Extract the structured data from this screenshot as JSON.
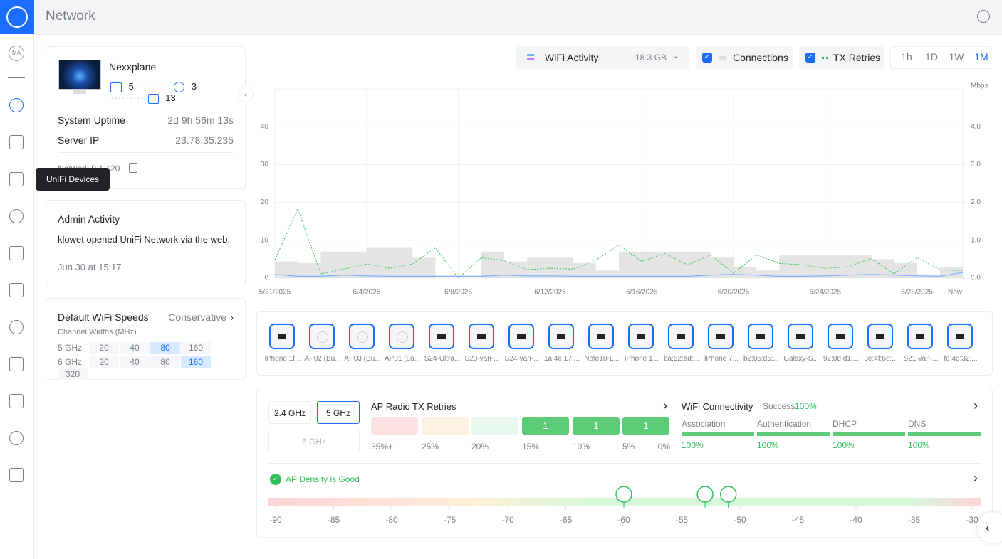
{
  "header": {
    "title": "Network",
    "avatar": "MA"
  },
  "tooltip": "UniFi Devices",
  "console": {
    "name": "Nexxplane",
    "gateways": 5,
    "aps": 3,
    "clients": 13,
    "rows": [
      {
        "label": "System Uptime",
        "value": "2d 9h 56m 13s"
      },
      {
        "label": "Server IP",
        "value": "23.78.35.235"
      }
    ],
    "version": "Network 9.1.120"
  },
  "admin_activity": {
    "title": "Admin Activity",
    "text": "klowet opened UniFi Network via the web.",
    "time": "Jun 30 at 15:17"
  },
  "wifi_speeds": {
    "title": "Default WiFi Speeds",
    "mode": "Conservative",
    "subtitle": "Channel Widths (MHz)",
    "rows": [
      {
        "band": "5 GHz",
        "widths": [
          20,
          40,
          80,
          160
        ],
        "selected": 80
      },
      {
        "band": "6 GHz",
        "widths": [
          20,
          40,
          80,
          160,
          320
        ],
        "selected": 160
      }
    ]
  },
  "toolbar": {
    "activity": "WiFi Activity",
    "total": "18.3 GB",
    "toggles": [
      "Connections",
      "TX Retries"
    ],
    "ranges": [
      "1h",
      "1D",
      "1W",
      "1M"
    ],
    "selected_range": "1M"
  },
  "chart_data": {
    "type": "line",
    "y2_label": "Mbps",
    "x": [
      "5/31/2025",
      "6/1/2025",
      "6/2/2025",
      "6/3/2025",
      "6/4/2025",
      "6/5/2025",
      "6/6/2025",
      "6/7/2025",
      "6/8/2025",
      "6/9/2025",
      "6/10/2025",
      "6/11/2025",
      "6/12/2025",
      "6/13/2025",
      "6/14/2025",
      "6/15/2025",
      "6/16/2025",
      "6/17/2025",
      "6/18/2025",
      "6/19/2025",
      "6/20/2025",
      "6/21/2025",
      "6/22/2025",
      "6/23/2025",
      "6/24/2025",
      "6/25/2025",
      "6/26/2025",
      "6/27/2025",
      "6/28/2025",
      "6/29/2025",
      "6/30/2025"
    ],
    "xlim": [
      "5/31/2025",
      "6/30/2025"
    ],
    "xticks": [
      "5/31/2025",
      "6/4/2025",
      "6/8/2025",
      "6/12/2025",
      "6/16/2025",
      "6/20/2025",
      "6/24/2025",
      "6/28/2025",
      {
        "value": "6/30/2025",
        "label": "Now"
      }
    ],
    "ylim": [
      0,
      50
    ],
    "yticks": [
      0,
      10,
      20,
      30,
      40
    ],
    "y2lim": [
      0,
      5
    ],
    "y2ticks": [
      {
        "value": 0,
        "label": "0.0"
      },
      {
        "value": 1,
        "label": "1.0"
      },
      {
        "value": 2,
        "label": "2.0"
      },
      {
        "value": 3,
        "label": "3.0"
      },
      {
        "value": 4,
        "label": "4.0"
      }
    ],
    "grid": true,
    "series": [
      {
        "name": "Connections",
        "kind": "bar",
        "color": "#e4e4e4",
        "values": [
          4.4,
          4,
          7,
          7,
          8,
          8,
          5.4,
          0,
          0,
          7,
          4.4,
          5.4,
          5.4,
          4,
          2,
          7,
          7,
          7,
          7,
          5.4,
          3,
          2,
          6,
          6,
          6,
          6,
          5,
          4,
          1,
          3,
          3
        ]
      },
      {
        "name": "TX Retries",
        "kind": "dotted",
        "color": "#2fbf5a",
        "values": [
          4.8,
          18.3,
          1.1,
          2.4,
          3.7,
          2.6,
          3.7,
          8,
          0,
          5.4,
          4.6,
          2.2,
          2.6,
          2.4,
          4.8,
          8.7,
          4.4,
          6.5,
          3.5,
          6.1,
          1.3,
          6.1,
          3.9,
          3.5,
          2.6,
          3,
          5.2,
          1.1,
          5.4,
          2.2,
          2
        ]
      },
      {
        "name": "WiFi Activity",
        "kind": "line",
        "axis": "y2",
        "color": "#7fb0ff",
        "values": [
          0.1,
          0.05,
          0.05,
          0.08,
          0.06,
          0.05,
          0.05,
          0.05,
          0.05,
          0.05,
          0.08,
          0.06,
          0.06,
          0.05,
          0.05,
          0.05,
          0.05,
          0.05,
          0.05,
          0.08,
          0.1,
          0.08,
          0.05,
          0.05,
          0.06,
          0.08,
          0.1,
          0.08,
          0.06,
          0.05,
          0.15
        ]
      }
    ]
  },
  "devices": [
    "iPhone 1f...",
    "AP02 (Bu...",
    "AP03 (Bu...",
    "AP01 (Lo...",
    "S24-Ultra...",
    "S23-van-...",
    "S24-van-...",
    "1a:4e:17:...",
    "Note10-L...",
    "iPhone 1...",
    "ba:52:ad:...",
    "iPhone 7...",
    "b2:85:d5:...",
    "Galaxy-S...",
    "92:0d:d1:...",
    "3e:4f:6e:...",
    "S21-van-...",
    "fe:4d:32:..."
  ],
  "radio": {
    "bands": [
      "2.4 GHz",
      "5 GHz",
      "6 GHz"
    ],
    "selected_band": "5 GHz",
    "tx_title": "AP Radio TX Retries",
    "tx_counts": [
      null,
      null,
      null,
      1,
      1,
      1
    ],
    "tx_colors": [
      "#fde4e4",
      "#fdf1e2",
      "#e8f8ee",
      "#5ccb78",
      "#5ccb78",
      "#5ccb78"
    ],
    "tx_labels": [
      "35%+",
      "25%",
      "20%",
      "15%",
      "10%",
      "5%",
      "0%"
    ]
  },
  "connectivity": {
    "title": "WiFi Connectivity",
    "success_label": "Success",
    "success": "100%",
    "steps": [
      {
        "name": "Association",
        "value": "100%"
      },
      {
        "name": "Authentication",
        "value": "100%"
      },
      {
        "name": "DHCP",
        "value": "100%"
      },
      {
        "name": "DNS",
        "value": "100%"
      }
    ]
  },
  "density": {
    "title": "AP Density is Good",
    "xlim": [
      -90,
      -30
    ],
    "xticks": [
      -90,
      -85,
      -80,
      -75,
      -70,
      -65,
      -60,
      -55,
      -50,
      -45,
      -40,
      -35,
      -30
    ],
    "markers": [
      -60,
      -53,
      -51
    ]
  }
}
